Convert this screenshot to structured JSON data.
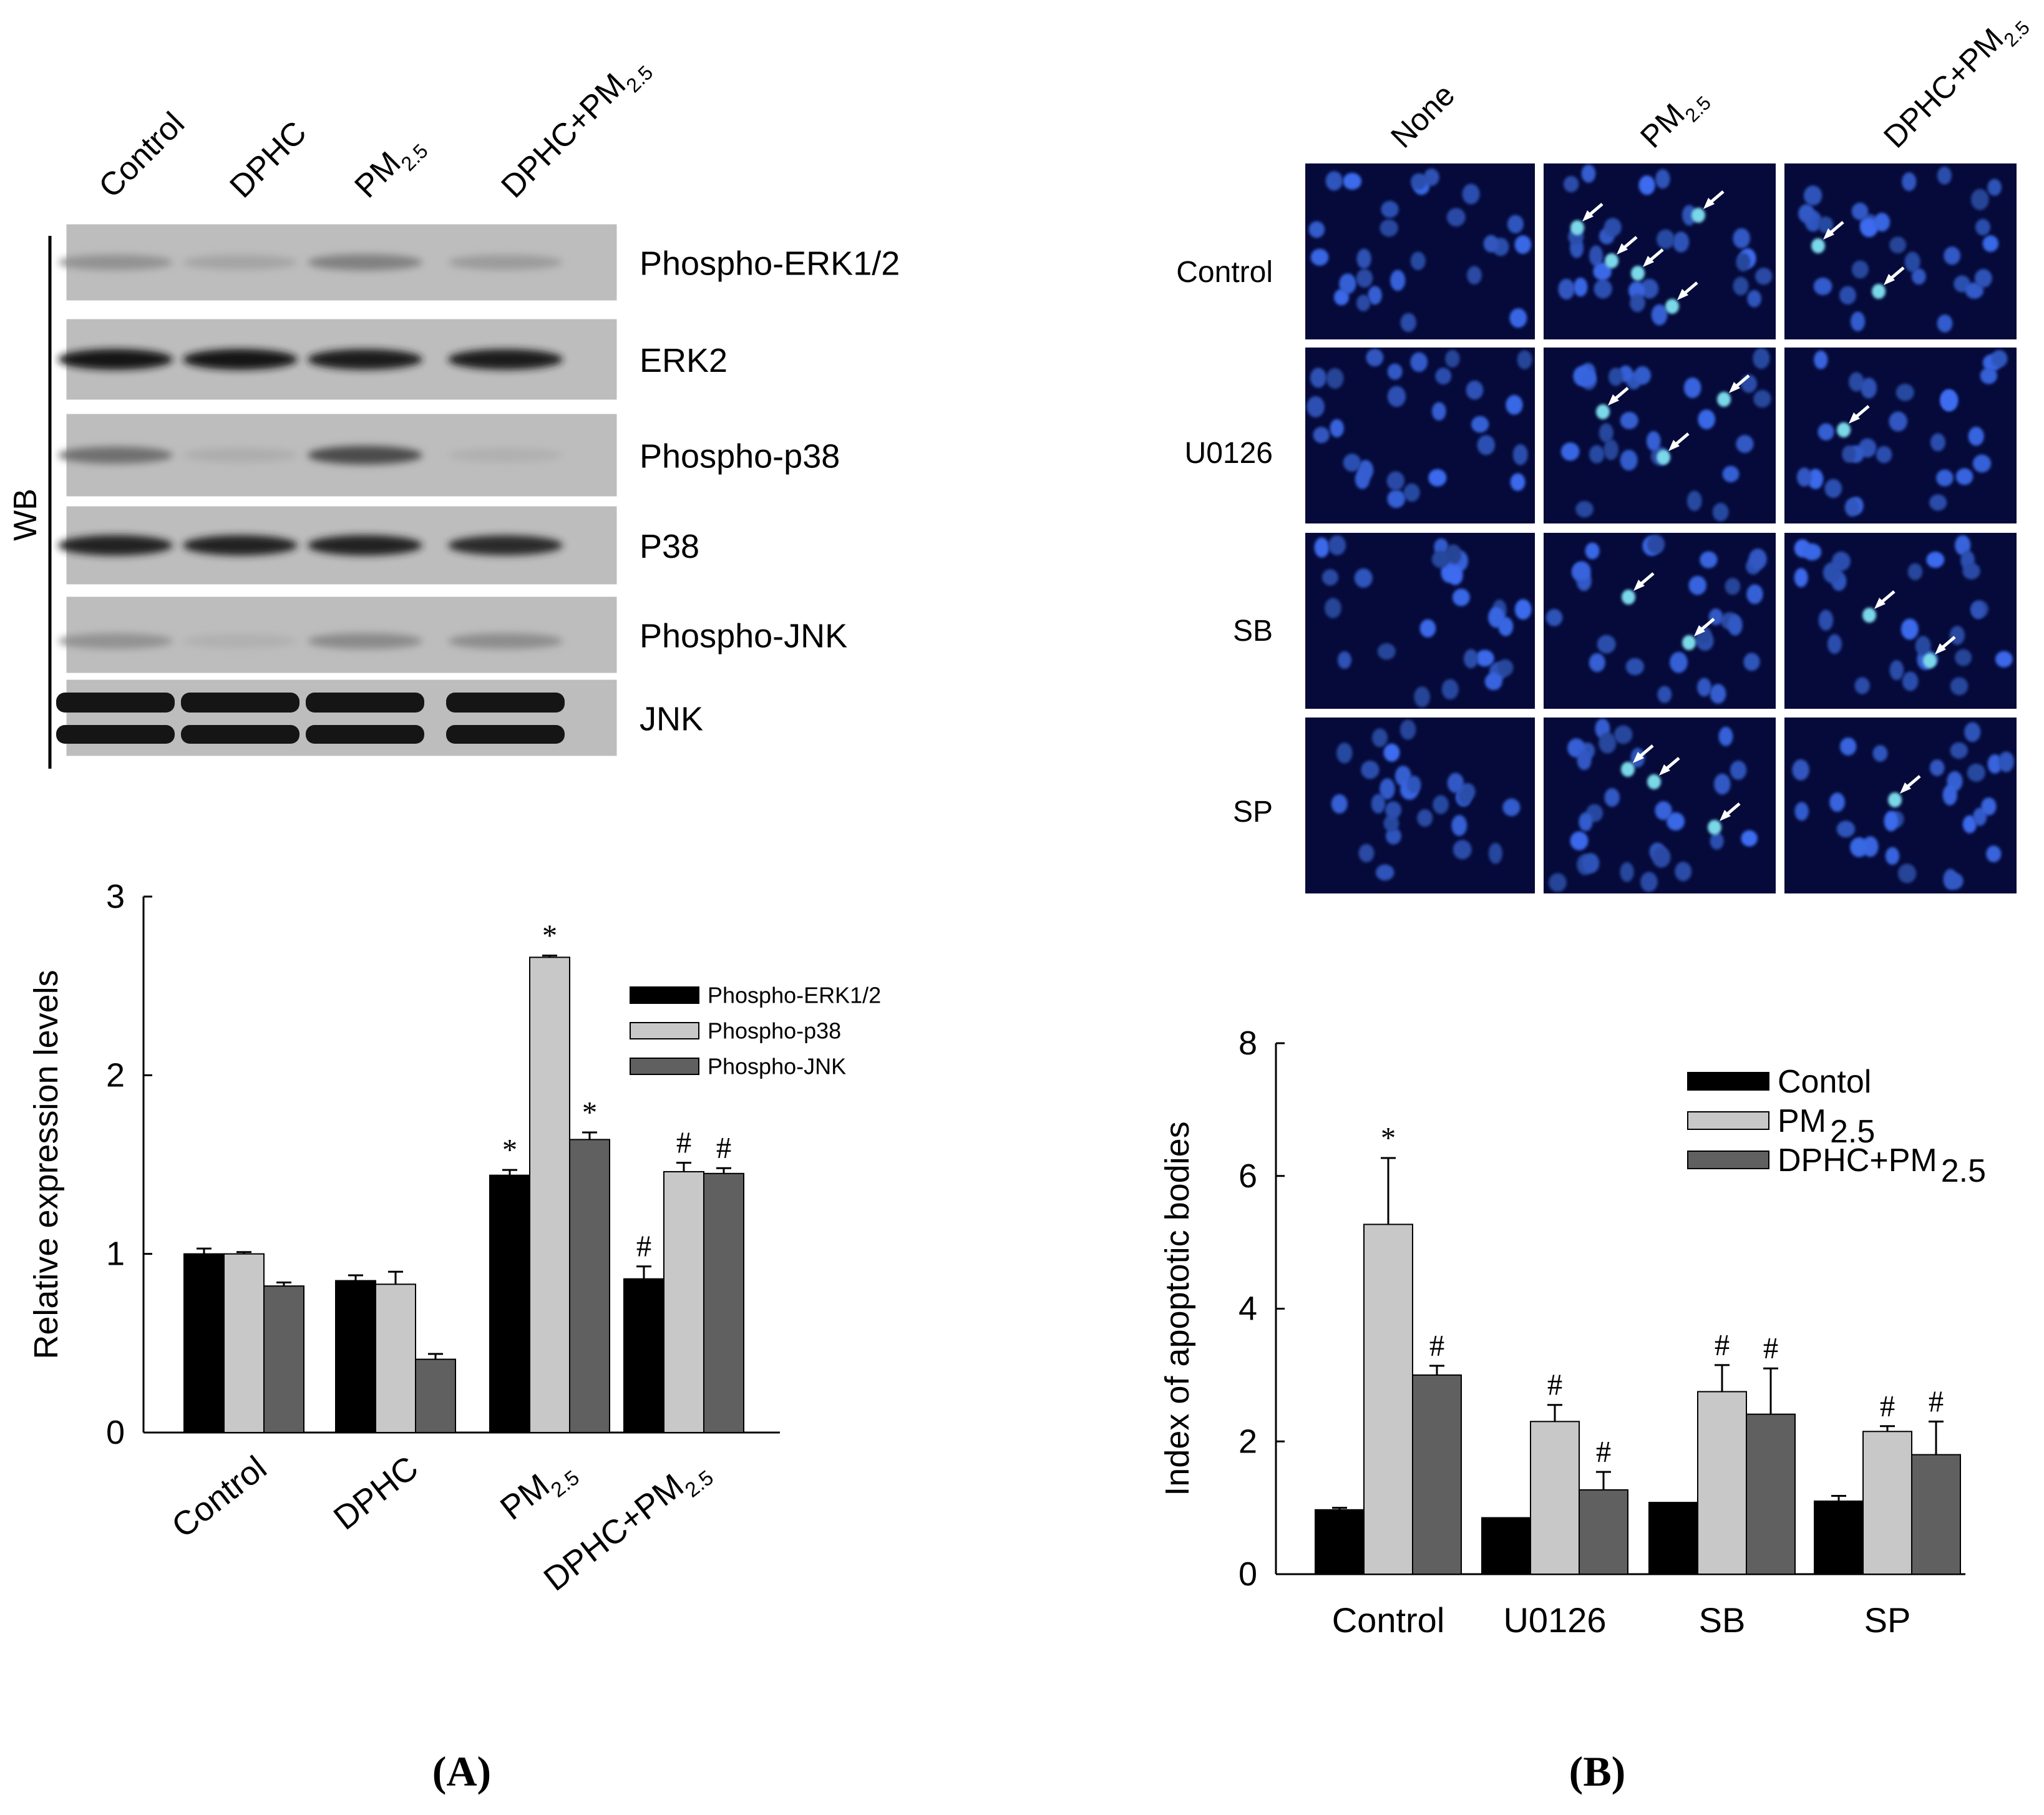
{
  "panel_a": {
    "label": "(A)",
    "wb": {
      "side_label": "WB",
      "lanes": [
        {
          "main": "Control",
          "sub": ""
        },
        {
          "main": "DPHC",
          "sub": ""
        },
        {
          "main": "PM",
          "sub": "2.5"
        },
        {
          "main": "DPHC+PM",
          "sub": "2.5"
        }
      ],
      "rows": [
        {
          "label": "Phospho-ERK1/2",
          "intensity": [
            0.25,
            0.15,
            0.35,
            0.2
          ]
        },
        {
          "label": "ERK2",
          "intensity": [
            0.95,
            0.95,
            0.92,
            0.92
          ]
        },
        {
          "label": "Phospho-p38",
          "intensity": [
            0.45,
            0.1,
            0.65,
            0.08
          ]
        },
        {
          "label": "P38",
          "intensity": [
            0.9,
            0.88,
            0.9,
            0.85
          ]
        },
        {
          "label": "Phospho-JNK",
          "intensity": [
            0.25,
            0.08,
            0.3,
            0.28
          ]
        },
        {
          "label": "JNK",
          "intensity": [
            1.0,
            1.0,
            1.0,
            1.0
          ]
        }
      ]
    }
  },
  "panel_b": {
    "label": "(B)",
    "columns": [
      {
        "main": "None",
        "sub": ""
      },
      {
        "main": "PM",
        "sub": "2.5"
      },
      {
        "main": "DPHC+PM",
        "sub": "2.5"
      }
    ],
    "rows": [
      "Control",
      "U0126",
      "SB",
      "SP"
    ],
    "arrow_counts": [
      [
        0,
        5,
        2
      ],
      [
        0,
        3,
        1
      ],
      [
        0,
        2,
        2
      ],
      [
        0,
        3,
        1
      ]
    ]
  },
  "chart_data": [
    {
      "type": "bar",
      "ylabel": "Relative  expression  levels",
      "xlabel": "",
      "ylim": [
        0,
        3
      ],
      "yticks": [
        "0",
        "1",
        "2",
        "3"
      ],
      "categories": [
        {
          "main": "Control",
          "sub": ""
        },
        {
          "main": "DPHC",
          "sub": ""
        },
        {
          "main": "PM",
          "sub": "2.5"
        },
        {
          "main": "DPHC+PM",
          "sub": "2.5"
        }
      ],
      "legend_position": "top-right",
      "series": [
        {
          "name": "Phospho-ERK1/2",
          "color": "#000000",
          "values": [
            1.0,
            0.85,
            1.44,
            0.86
          ],
          "errors": [
            0.03,
            0.03,
            0.03,
            0.07
          ],
          "marks": [
            "",
            "",
            "*",
            "#"
          ]
        },
        {
          "name": "Phospho-p38",
          "color": "#c8c8c8",
          "values": [
            1.0,
            0.83,
            2.66,
            1.46
          ],
          "errors": [
            0.01,
            0.07,
            0.01,
            0.05
          ],
          "marks": [
            "",
            "",
            "*",
            "#"
          ]
        },
        {
          "name": "Phospho-JNK",
          "color": "#606060",
          "values": [
            0.82,
            0.41,
            1.64,
            1.45
          ],
          "errors": [
            0.02,
            0.03,
            0.04,
            0.03
          ],
          "marks": [
            "",
            "",
            "*",
            "#"
          ]
        }
      ]
    },
    {
      "type": "bar",
      "ylabel": "Index of apoptotic bodies",
      "xlabel": "",
      "ylim": [
        0,
        8
      ],
      "yticks": [
        "0",
        "2",
        "4",
        "6",
        "8"
      ],
      "categories": [
        {
          "main": "Control",
          "sub": ""
        },
        {
          "main": "U0126",
          "sub": ""
        },
        {
          "main": "SB",
          "sub": ""
        },
        {
          "main": "SP",
          "sub": ""
        }
      ],
      "legend_position": "top-right",
      "series": [
        {
          "name": "Contol",
          "name_sub": "",
          "color": "#000000",
          "values": [
            0.97,
            0.85,
            1.08,
            1.1
          ],
          "errors": [
            0.03,
            0.0,
            0.0,
            0.08
          ],
          "marks": [
            "",
            "",
            "",
            ""
          ]
        },
        {
          "name": "PM",
          "name_sub": "2.5",
          "color": "#c8c8c8",
          "values": [
            5.27,
            2.3,
            2.75,
            2.15
          ],
          "errors": [
            1.0,
            0.25,
            0.4,
            0.08
          ],
          "marks": [
            "*",
            "#",
            "#",
            "#"
          ]
        },
        {
          "name": "DPHC+PM",
          "name_sub": "2.5",
          "color": "#606060",
          "values": [
            3.0,
            1.27,
            2.41,
            1.8
          ],
          "errors": [
            0.14,
            0.27,
            0.69,
            0.5
          ],
          "marks": [
            "#",
            "#",
            "#",
            "#"
          ]
        }
      ]
    }
  ]
}
